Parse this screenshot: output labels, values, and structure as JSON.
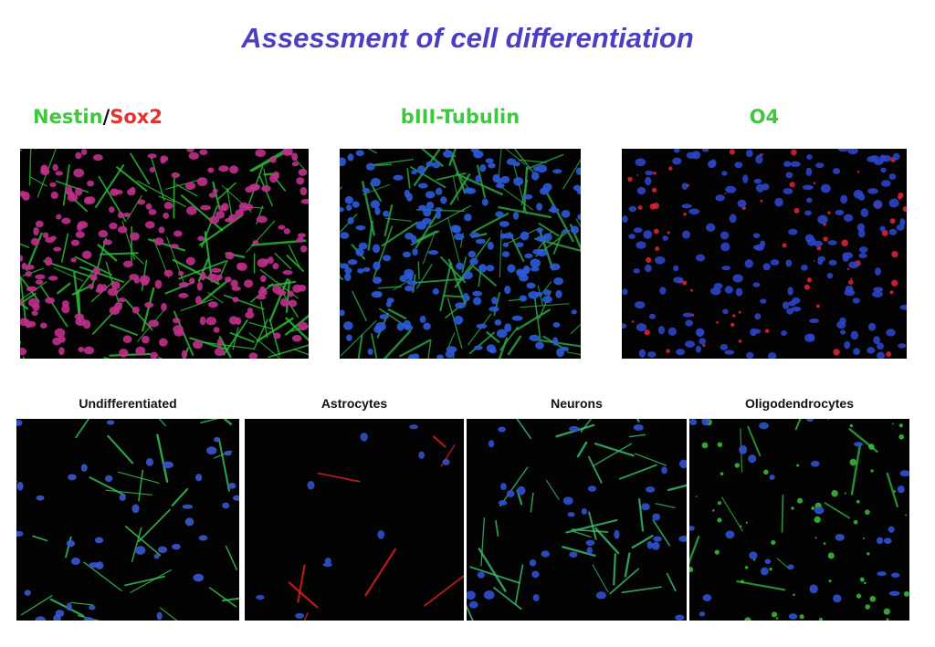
{
  "title": "Assessment of cell differentiation",
  "top_panels": [
    {
      "label_parts": [
        "Nestin",
        "/",
        "Sox2"
      ]
    },
    {
      "label": "bIII-Tubulin"
    },
    {
      "label": "O4"
    }
  ],
  "bottom_panels": [
    {
      "label": "Undifferentiated"
    },
    {
      "label": "Astrocytes"
    },
    {
      "label": "Neurons"
    },
    {
      "label": "Oligodendrocytes"
    }
  ]
}
